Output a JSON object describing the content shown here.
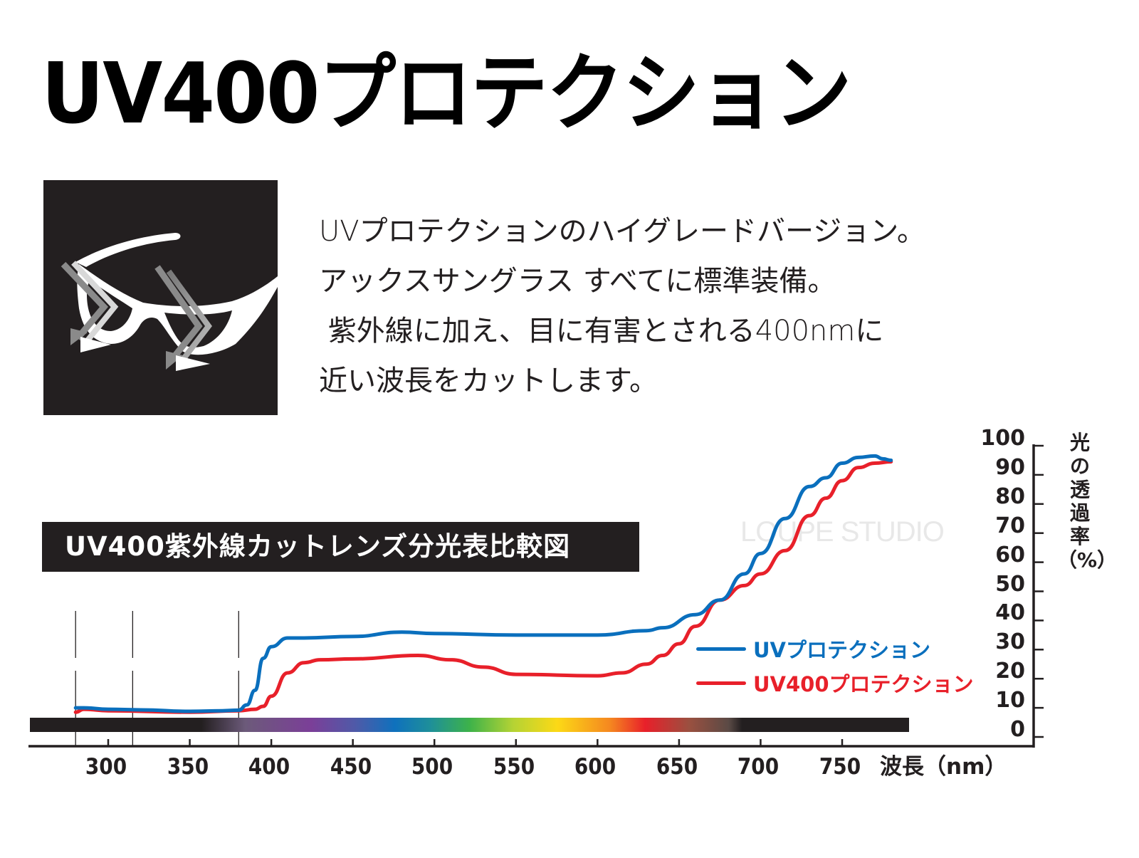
{
  "header": {
    "title": "UV400プロテクション"
  },
  "icon": {
    "name": "sunglasses-uv-cut-icon",
    "background": "#231f20"
  },
  "description": {
    "lines": [
      "UVプロテクションのハイグレードバージョン。",
      "アックスサングラス すべてに標準装備。",
      " 紫外線に加え、目に有害とされる400nmに",
      "近い波長をカットします。"
    ]
  },
  "watermark": "LOUPE STUDIO",
  "chart_data": {
    "type": "line",
    "title": "UV400紫外線カットレンズ分光表比較図",
    "xlabel": "波長（nm）",
    "ylabel": "光の透過率（%）",
    "xlim": [
      250,
      800
    ],
    "ylim": [
      0,
      100
    ],
    "x_ticks": [
      300,
      350,
      400,
      450,
      500,
      550,
      600,
      650,
      700,
      750
    ],
    "y_ticks": [
      0,
      10,
      20,
      30,
      40,
      50,
      60,
      70,
      80,
      90,
      100
    ],
    "reference_lines_nm": [
      280,
      315,
      380
    ],
    "grid": false,
    "legend_position": "right-middle",
    "spectrum_bar": "black outside 360–700nm, visible rainbow gradient in between",
    "series": [
      {
        "name": "UVプロテクション",
        "color": "#0a6fbd",
        "x": [
          280,
          285,
          300,
          320,
          350,
          370,
          380,
          385,
          390,
          395,
          400,
          410,
          420,
          450,
          480,
          500,
          550,
          600,
          630,
          640,
          660,
          675,
          690,
          700,
          715,
          730,
          740,
          750,
          760,
          770,
          775,
          780
        ],
        "y": [
          10,
          10,
          9.5,
          9.3,
          8.8,
          9,
          9.2,
          11,
          16,
          27,
          31,
          34,
          34,
          34.5,
          36,
          35.5,
          35,
          35,
          36.5,
          37.5,
          42,
          47,
          56,
          63,
          75,
          86,
          89,
          94,
          96,
          96.5,
          95.5,
          95
        ]
      },
      {
        "name": "UV400プロテクション",
        "color": "#e8202a",
        "x": [
          280,
          285,
          300,
          350,
          380,
          390,
          395,
          400,
          410,
          420,
          430,
          450,
          490,
          510,
          530,
          550,
          600,
          615,
          630,
          640,
          650,
          660,
          675,
          690,
          700,
          715,
          730,
          740,
          750,
          760,
          770,
          780
        ],
        "y": [
          8.5,
          9.5,
          9,
          8.5,
          9,
          9.5,
          10.5,
          14,
          22,
          25.5,
          26.5,
          26.8,
          28,
          26.5,
          24,
          21.5,
          21,
          22,
          25,
          28,
          32,
          38,
          47,
          52,
          56,
          64,
          76,
          82,
          88,
          92.5,
          94,
          94.5
        ]
      }
    ]
  },
  "legend": {
    "items": [
      {
        "label": "UVプロテクション",
        "color": "#0a6fbd"
      },
      {
        "label": "UV400プロテクション",
        "color": "#e8202a"
      }
    ]
  },
  "axis": {
    "x_tick_labels": [
      "300",
      "350",
      "400",
      "450",
      "500",
      "550",
      "600",
      "650",
      "700",
      "750"
    ],
    "x_label": "波長（nm）",
    "y_tick_labels": [
      "100",
      "90",
      "80",
      "70",
      "60",
      "50",
      "40",
      "30",
      "20",
      "10",
      "0"
    ],
    "y_label_chars": [
      "光",
      "の",
      "透",
      "過",
      "率",
      "（%）"
    ]
  }
}
